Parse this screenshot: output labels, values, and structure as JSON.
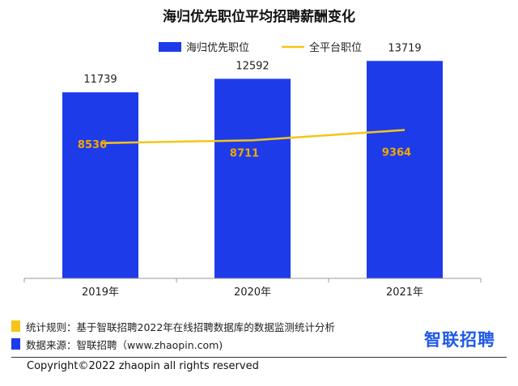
{
  "chart_data": {
    "type": "bar",
    "title": "海归优先职位平均招聘薪酬变化",
    "categories": [
      "2019年",
      "2020年",
      "2021年"
    ],
    "series": [
      {
        "name": "海归优先职位",
        "type": "bar",
        "color": "#1e3bea",
        "values": [
          11739,
          12592,
          13719
        ]
      },
      {
        "name": "全平台职位",
        "type": "line",
        "color": "#f5c518",
        "values": [
          8536,
          8711,
          9364
        ]
      }
    ],
    "ylim": [
      0,
      14500
    ],
    "grid": false,
    "legend": "top-center",
    "line_label_color": "#f0a800"
  },
  "footer": {
    "rule_text": "统计规则：基于智联招聘2022年在线招聘数据库的数据监测统计分析",
    "source_text": "数据来源：智联招聘（www.zhaopin.com)",
    "rule_swatch_color": "#f5c518",
    "source_swatch_color": "#1e3bea",
    "brand": "智联招聘",
    "copyright": "Copyright©2022 zhaopin all rights reserved"
  }
}
